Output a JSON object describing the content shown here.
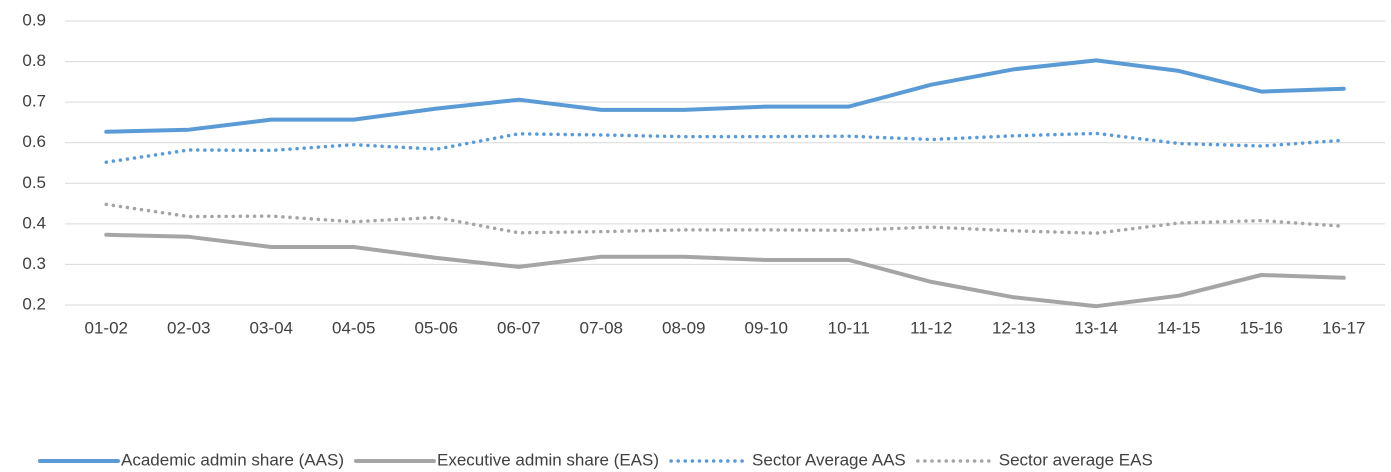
{
  "chart_data": {
    "type": "line",
    "categories": [
      "01-02",
      "02-03",
      "03-04",
      "04-05",
      "05-06",
      "06-07",
      "07-08",
      "08-09",
      "09-10",
      "10-11",
      "11-12",
      "12-13",
      "13-14",
      "14-15",
      "15-16",
      "16-17"
    ],
    "series": [
      {
        "name": "Academic admin share (AAS)",
        "color": "#5b9bd5",
        "line_style": "solid",
        "values": [
          0.627,
          0.632,
          0.657,
          0.657,
          0.684,
          0.706,
          0.681,
          0.681,
          0.689,
          0.689,
          0.743,
          0.781,
          0.803,
          0.777,
          0.726,
          0.733
        ]
      },
      {
        "name": "Executive admin share (EAS)",
        "color": "#a5a5a5",
        "line_style": "solid",
        "values": [
          0.373,
          0.368,
          0.343,
          0.343,
          0.316,
          0.294,
          0.319,
          0.319,
          0.311,
          0.311,
          0.257,
          0.219,
          0.197,
          0.223,
          0.274,
          0.267
        ]
      },
      {
        "name": "Sector Average AAS",
        "color": "#5b9bd5",
        "line_style": "dotted",
        "values": [
          0.552,
          0.582,
          0.581,
          0.595,
          0.584,
          0.622,
          0.619,
          0.615,
          0.615,
          0.616,
          0.608,
          0.617,
          0.623,
          0.598,
          0.592,
          0.606
        ]
      },
      {
        "name": "Sector average EAS",
        "color": "#a5a5a5",
        "line_style": "dotted",
        "values": [
          0.448,
          0.418,
          0.419,
          0.405,
          0.416,
          0.378,
          0.381,
          0.385,
          0.385,
          0.384,
          0.392,
          0.383,
          0.377,
          0.402,
          0.408,
          0.394
        ]
      }
    ],
    "ylim": [
      0.2,
      0.9
    ],
    "yticks": [
      0.2,
      0.3,
      0.4,
      0.5,
      0.6,
      0.7,
      0.8,
      0.9
    ],
    "grid": true,
    "legend": "bottom"
  }
}
